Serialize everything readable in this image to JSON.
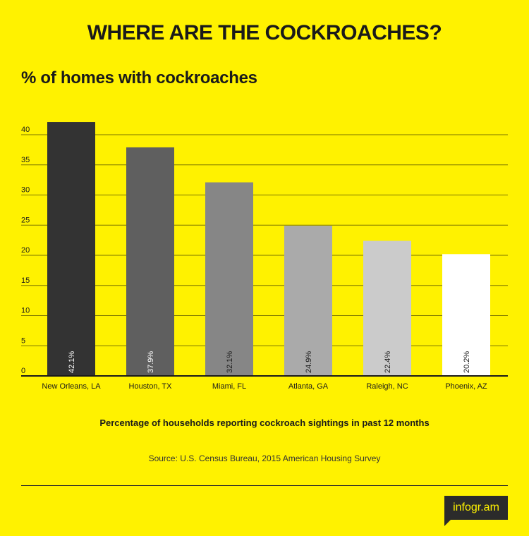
{
  "header": {
    "title": "WHERE ARE THE COCKROACHES?",
    "subtitle": "% of homes with cockroaches"
  },
  "chart_data": {
    "type": "bar",
    "categories": [
      "New Orleans, LA",
      "Houston, TX",
      "Miami, FL",
      "Atlanta, GA",
      "Raleigh, NC",
      "Phoenix, AZ"
    ],
    "values": [
      42.1,
      37.9,
      32.1,
      24.9,
      22.4,
      20.2
    ],
    "data_labels": [
      "42.1%",
      "37.9%",
      "32.1%",
      "24.9%",
      "22.4%",
      "20.2%"
    ],
    "bar_colors": [
      "#333333",
      "#5f5f5f",
      "#868686",
      "#aaaaaa",
      "#cbcbcb",
      "#ffffff"
    ],
    "label_colors": [
      "#ffffff",
      "#ffffff",
      "#1a1a1a",
      "#1a1a1a",
      "#1a1a1a",
      "#1a1a1a"
    ],
    "yticks": [
      0,
      5,
      10,
      15,
      20,
      25,
      30,
      35,
      40
    ],
    "ylim": [
      0,
      42.1
    ],
    "grid": true,
    "legend": "none"
  },
  "caption": "Percentage of households reporting cockroach sightings in past 12 months",
  "source": "Source: U.S. Census Bureau, 2015 American Housing Survey",
  "brand": {
    "label": "infogr.am",
    "bg": "#2b2b2b",
    "fg": "#FFF200"
  },
  "colors": {
    "background": "#FFF200",
    "text": "#1a1a1a",
    "grid": "#7a7400"
  }
}
